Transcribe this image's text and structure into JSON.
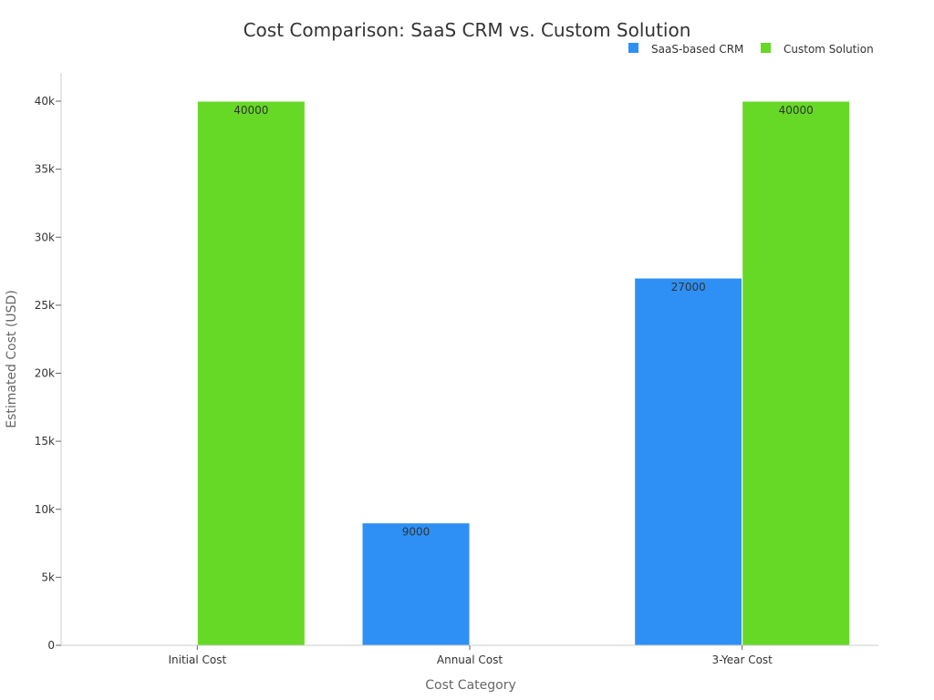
{
  "chart_data": {
    "type": "bar",
    "title": "Cost Comparison: SaaS CRM vs. Custom Solution",
    "xlabel": "Cost Category",
    "ylabel": "Estimated Cost (USD)",
    "categories": [
      "Initial Cost",
      "Annual Cost",
      "3-Year Cost"
    ],
    "series": [
      {
        "name": "SaaS-based CRM",
        "color": "#2e90f5",
        "values": [
          0,
          9000,
          27000
        ]
      },
      {
        "name": "Custom Solution",
        "color": "#66d926",
        "values": [
          40000,
          0,
          40000
        ]
      }
    ],
    "ylim": [
      0,
      40000
    ],
    "yticks": [
      0,
      5000,
      10000,
      15000,
      20000,
      25000,
      30000,
      35000,
      40000
    ],
    "ytick_labels": [
      "0",
      "5k",
      "10k",
      "15k",
      "20k",
      "25k",
      "30k",
      "35k",
      "40k"
    ],
    "legend_position": "top-right",
    "grid": false
  }
}
